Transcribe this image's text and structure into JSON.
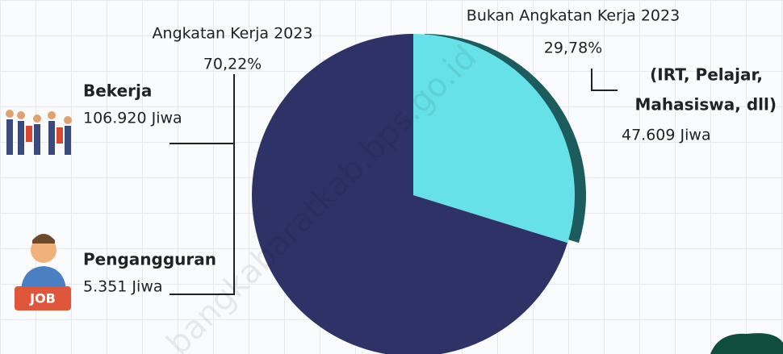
{
  "chart_data": {
    "type": "pie",
    "categories": [
      "Bukan Angkatan Kerja 2023",
      "Angkatan Kerja 2023"
    ],
    "values": [
      29.78,
      70.22
    ],
    "value_labels": [
      "29,78%",
      "70,22%"
    ],
    "colors": [
      "#66e1e8",
      "#2f3266"
    ],
    "shadow_color": "#1d5c5c",
    "annotations": {
      "bekerja": {
        "title": "Bekerja",
        "value": "106.920 Jiwa"
      },
      "pengangguran": {
        "title": "Pengangguran",
        "value": "5.351 Jiwa"
      },
      "bukan": {
        "title_1": "(IRT, Pelajar,",
        "title_2": "Mahasiswa, dll)",
        "value": "47.609 Jiwa"
      }
    },
    "icon_text": "JOB",
    "watermark": "bangkabaratkab.bps.go.id"
  }
}
